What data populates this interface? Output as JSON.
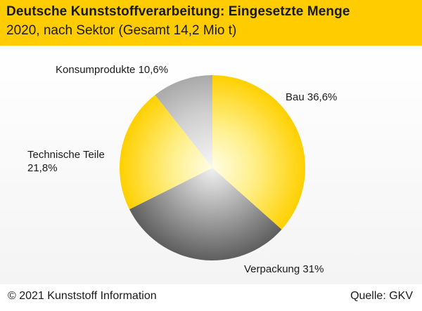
{
  "header": {
    "title": "Deutsche Kunststoffverarbeitung: Eingesetzte Menge",
    "subtitle": "2020, nach Sektor (Gesamt 14,2 Mio t)"
  },
  "chart_data": {
    "type": "pie",
    "title": "Deutsche Kunststoffverarbeitung: Eingesetzte Menge",
    "subtitle": "2020, nach Sektor (Gesamt 14,2 Mio t)",
    "unit": "%",
    "slices": [
      {
        "name": "Bau",
        "value": 36.6,
        "label": "Bau 36,6%",
        "color": "#ffd21a"
      },
      {
        "name": "Verpackung",
        "value": 31.0,
        "label": "Verpackung 31%",
        "color": "#8c8c8c"
      },
      {
        "name": "Technische Teile",
        "value": 21.8,
        "label": "Technische Teile 21,8%",
        "label_line1": "Technische Teile",
        "label_line2": "21,8%",
        "color": "#ffd21a"
      },
      {
        "name": "Konsumprodukte",
        "value": 10.6,
        "label": "Konsumprodukte 10,6%",
        "color": "#b8b8b8"
      }
    ],
    "start": "12 o'clock",
    "direction": "clockwise"
  },
  "footer": {
    "copyright": "© 2021 Kunststoff Information",
    "source": "Quelle: GKV"
  },
  "colors": {
    "header_bg": "#ffcc00",
    "accent_yellow": "#ffd21a",
    "gray_dark": "#8c8c8c"
  }
}
